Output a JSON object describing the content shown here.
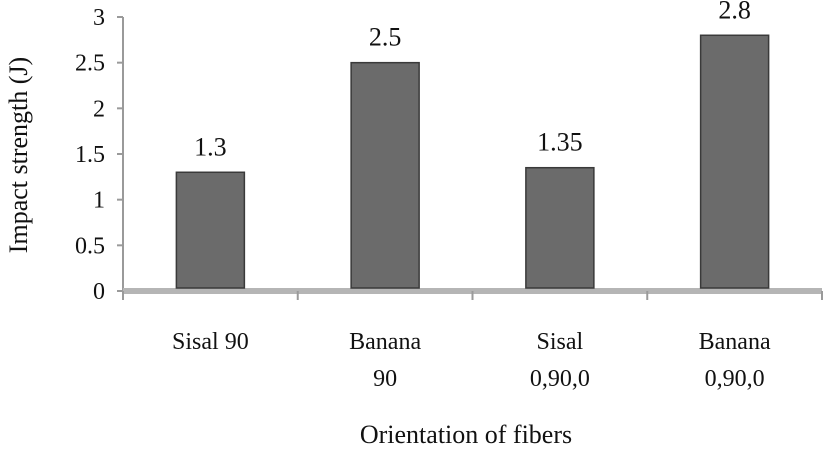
{
  "chart_data": {
    "type": "bar",
    "xlabel": "Orientation of fibers",
    "ylabel": "Impact strength (J)",
    "categories": [
      [
        "Sisal 90"
      ],
      [
        "Banana",
        "90"
      ],
      [
        "Sisal",
        "0,90,0"
      ],
      [
        "Banana",
        "0,90,0"
      ]
    ],
    "values": [
      1.3,
      2.5,
      1.35,
      2.8
    ],
    "value_labels": [
      "1.3",
      "2.5",
      "1.35",
      "2.8"
    ],
    "ylim": [
      0,
      3
    ],
    "yticks": [
      0,
      0.5,
      1,
      1.5,
      2,
      2.5,
      3
    ],
    "ytick_labels": [
      "0",
      "0.5",
      "1",
      "1.5",
      "2",
      "2.5",
      "3"
    ],
    "grid": false,
    "legend": "none",
    "colors": {
      "bar": "#6b6b6b",
      "bar_edge": "#3a3a3a",
      "axis": "#9a9a9a",
      "baseline": "#b5b5b5"
    }
  }
}
